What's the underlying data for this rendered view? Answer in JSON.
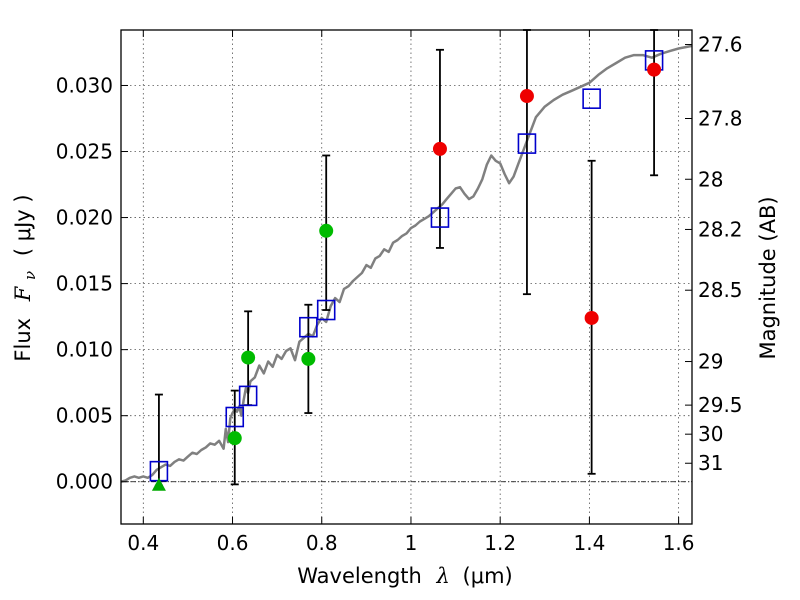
{
  "chart_data": {
    "type": "scatter",
    "xlabel": {
      "prefix": "Wavelength",
      "symbol": "λ",
      "unit": "(μm)"
    },
    "ylabel": {
      "prefix": "Flux",
      "symbol": "F",
      "subscript": "ν",
      "unit": "( μJy )"
    },
    "ylabel_right": "Magnitude (AB)",
    "xlim": [
      0.35,
      1.63
    ],
    "ylim": [
      -0.0032,
      0.0342
    ],
    "grid": true,
    "x_ticks": [
      {
        "value": 0.4,
        "label": "0.4"
      },
      {
        "value": 0.6,
        "label": "0.6"
      },
      {
        "value": 0.8,
        "label": "0.8"
      },
      {
        "value": 1.0,
        "label": "1"
      },
      {
        "value": 1.2,
        "label": "1.2"
      },
      {
        "value": 1.4,
        "label": "1.4"
      },
      {
        "value": 1.6,
        "label": "1.6"
      }
    ],
    "y_ticks": [
      {
        "value": 0.0,
        "label": "0.000"
      },
      {
        "value": 0.005,
        "label": "0.005"
      },
      {
        "value": 0.01,
        "label": "0.010"
      },
      {
        "value": 0.015,
        "label": "0.015"
      },
      {
        "value": 0.02,
        "label": "0.020"
      },
      {
        "value": 0.025,
        "label": "0.025"
      },
      {
        "value": 0.03,
        "label": "0.030"
      }
    ],
    "right_ticks": [
      {
        "label": "27.6",
        "flux": 0.0331
      },
      {
        "label": "27.8",
        "flux": 0.0275
      },
      {
        "label": "28",
        "flux": 0.0229
      },
      {
        "label": "28.2",
        "flux": 0.0191
      },
      {
        "label": "28.5",
        "flux": 0.0145
      },
      {
        "label": "29",
        "flux": 0.0091
      },
      {
        "label": "29.5",
        "flux": 0.0058
      },
      {
        "label": "30",
        "flux": 0.0036
      },
      {
        "label": "31",
        "flux": 0.0014
      }
    ],
    "sed_model": {
      "color": "#808080",
      "x": [
        0.35,
        0.36,
        0.37,
        0.38,
        0.39,
        0.4,
        0.41,
        0.42,
        0.43,
        0.44,
        0.45,
        0.46,
        0.47,
        0.48,
        0.49,
        0.5,
        0.51,
        0.52,
        0.53,
        0.54,
        0.55,
        0.56,
        0.57,
        0.58,
        0.585,
        0.59,
        0.595,
        0.6,
        0.605,
        0.61,
        0.615,
        0.62,
        0.625,
        0.63,
        0.635,
        0.64,
        0.65,
        0.66,
        0.67,
        0.68,
        0.69,
        0.7,
        0.71,
        0.72,
        0.73,
        0.74,
        0.75,
        0.76,
        0.77,
        0.78,
        0.79,
        0.8,
        0.81,
        0.82,
        0.83,
        0.84,
        0.85,
        0.86,
        0.87,
        0.88,
        0.89,
        0.9,
        0.91,
        0.92,
        0.93,
        0.94,
        0.95,
        0.96,
        0.97,
        0.98,
        0.99,
        1.0,
        1.01,
        1.02,
        1.03,
        1.04,
        1.05,
        1.06,
        1.07,
        1.08,
        1.09,
        1.1,
        1.11,
        1.12,
        1.13,
        1.14,
        1.15,
        1.16,
        1.17,
        1.18,
        1.19,
        1.2,
        1.21,
        1.22,
        1.23,
        1.24,
        1.25,
        1.26,
        1.27,
        1.28,
        1.29,
        1.3,
        1.32,
        1.34,
        1.36,
        1.38,
        1.4,
        1.42,
        1.44,
        1.46,
        1.48,
        1.5,
        1.52,
        1.54,
        1.56,
        1.58,
        1.6,
        1.63
      ],
      "y": [
        0.0,
        0.0001,
        0.0003,
        0.0004,
        0.0003,
        0.0004,
        0.0003,
        0.0005,
        0.0009,
        0.0011,
        0.0013,
        0.0012,
        0.0015,
        0.0017,
        0.0016,
        0.0019,
        0.0022,
        0.0021,
        0.0024,
        0.0026,
        0.0029,
        0.0028,
        0.0031,
        0.0025,
        0.004,
        0.003,
        0.0048,
        0.0052,
        0.0055,
        0.0053,
        0.0057,
        0.005,
        0.0062,
        0.0071,
        0.0067,
        0.0076,
        0.0079,
        0.0088,
        0.0082,
        0.0091,
        0.0087,
        0.0096,
        0.0093,
        0.0099,
        0.0101,
        0.0092,
        0.0106,
        0.0109,
        0.0112,
        0.011,
        0.0119,
        0.0124,
        0.0121,
        0.0133,
        0.0139,
        0.0136,
        0.0146,
        0.0148,
        0.0152,
        0.0155,
        0.0158,
        0.0164,
        0.0162,
        0.0169,
        0.0171,
        0.0176,
        0.0174,
        0.0181,
        0.0183,
        0.0186,
        0.0188,
        0.0192,
        0.0194,
        0.0197,
        0.0199,
        0.0201,
        0.0204,
        0.0207,
        0.021,
        0.0214,
        0.0218,
        0.0222,
        0.0223,
        0.0218,
        0.0214,
        0.0216,
        0.0222,
        0.0229,
        0.024,
        0.0247,
        0.0243,
        0.0241,
        0.0233,
        0.0226,
        0.0231,
        0.024,
        0.0249,
        0.0258,
        0.0267,
        0.0276,
        0.028,
        0.0284,
        0.0289,
        0.0293,
        0.0296,
        0.0299,
        0.0302,
        0.0308,
        0.0313,
        0.0317,
        0.0321,
        0.0323,
        0.0323,
        0.0321,
        0.0324,
        0.0326,
        0.0328,
        0.033
      ]
    },
    "model_points": {
      "marker": "open-square",
      "color": "#0000cc",
      "x": [
        0.435,
        0.605,
        0.635,
        0.77,
        0.81,
        1.065,
        1.26,
        1.405,
        1.545
      ],
      "y": [
        0.0008,
        0.0049,
        0.0065,
        0.0117,
        0.013,
        0.02,
        0.0256,
        0.029,
        0.0319
      ]
    },
    "observed_points": [
      {
        "marker": "triangle",
        "color": "#00aa00",
        "x": 0.435,
        "y": -0.0003,
        "err_low": -0.0003,
        "err_high": 0.0066
      },
      {
        "marker": "circle",
        "color": "#00bb00",
        "x": 0.605,
        "y": 0.0033,
        "err_low": -0.0002,
        "err_high": 0.0069
      },
      {
        "marker": "circle",
        "color": "#00bb00",
        "x": 0.635,
        "y": 0.0094,
        "err_low": 0.0058,
        "err_high": 0.0129
      },
      {
        "marker": "circle",
        "color": "#00bb00",
        "x": 0.77,
        "y": 0.0093,
        "err_low": 0.0052,
        "err_high": 0.0134
      },
      {
        "marker": "circle",
        "color": "#00bb00",
        "x": 0.81,
        "y": 0.019,
        "err_low": 0.013,
        "err_high": 0.0247
      },
      {
        "marker": "circle",
        "color": "#ee0000",
        "x": 1.065,
        "y": 0.0252,
        "err_low": 0.0177,
        "err_high": 0.0327
      },
      {
        "marker": "circle",
        "color": "#ee0000",
        "x": 1.26,
        "y": 0.0292,
        "err_low": 0.0142,
        "err_high": 0.0342
      },
      {
        "marker": "circle",
        "color": "#ee0000",
        "x": 1.405,
        "y": 0.0124,
        "err_low": 0.0006,
        "err_high": 0.0243
      },
      {
        "marker": "circle",
        "color": "#ee0000",
        "x": 1.545,
        "y": 0.0312,
        "err_low": 0.0232,
        "err_high": 0.0342
      }
    ]
  }
}
